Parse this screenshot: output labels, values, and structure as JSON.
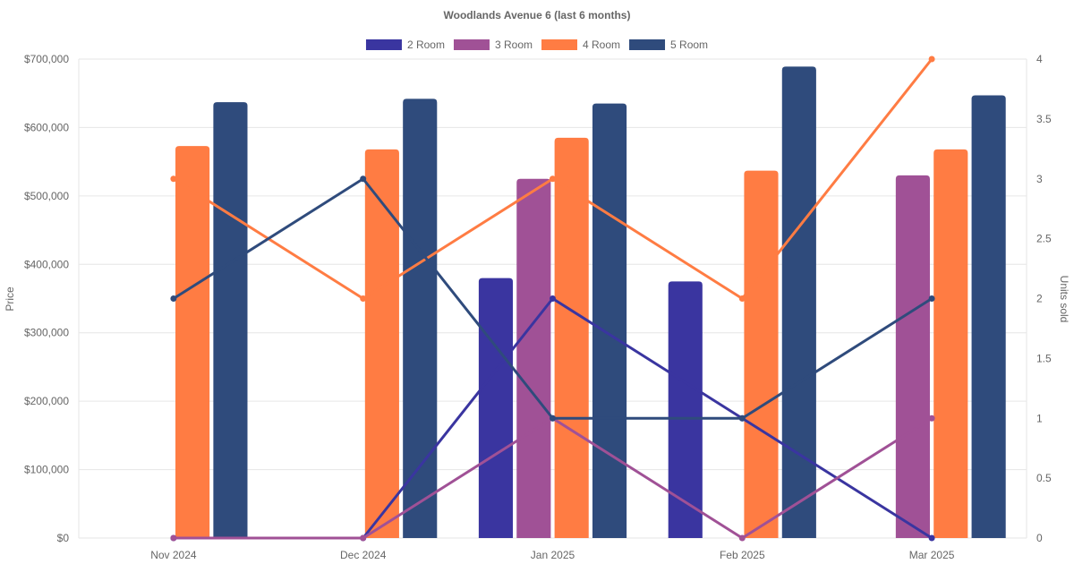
{
  "chart_data": {
    "type": "bar+line",
    "title": "Woodlands Avenue 6 (last 6 months)",
    "categories": [
      "Nov 2024",
      "Dec 2024",
      "Jan 2025",
      "Feb 2025",
      "Mar 2025"
    ],
    "y_left": {
      "label": "Price",
      "min": 0,
      "max": 700000,
      "step": 100000,
      "ticks": [
        "$0",
        "$100,000",
        "$200,000",
        "$300,000",
        "$400,000",
        "$500,000",
        "$600,000",
        "$700,000"
      ]
    },
    "y_right": {
      "label": "Units sold",
      "min": 0,
      "max": 4,
      "step": 0.5,
      "ticks": [
        "0",
        "0.5",
        "1",
        "1.5",
        "2",
        "2.5",
        "3",
        "3.5",
        "4"
      ]
    },
    "legend": {
      "position": "top-center"
    },
    "series": [
      {
        "name": "2 Room",
        "color": "#3a35a0",
        "prices": [
          null,
          null,
          380000,
          375000,
          null
        ],
        "units": [
          0,
          0,
          2,
          1,
          0
        ]
      },
      {
        "name": "3 Room",
        "color": "#a05196",
        "prices": [
          null,
          null,
          525000,
          null,
          530000
        ],
        "units": [
          0,
          0,
          1,
          0,
          1
        ]
      },
      {
        "name": "4 Room",
        "color": "#ff7c43",
        "prices": [
          573000,
          568000,
          585000,
          537000,
          568000
        ],
        "units": [
          3,
          2,
          3,
          2,
          4
        ]
      },
      {
        "name": "5 Room",
        "color": "#2f4b7c",
        "prices": [
          637000,
          642000,
          635000,
          689000,
          647000
        ],
        "units": [
          2,
          3,
          1,
          1,
          2
        ]
      }
    ]
  }
}
